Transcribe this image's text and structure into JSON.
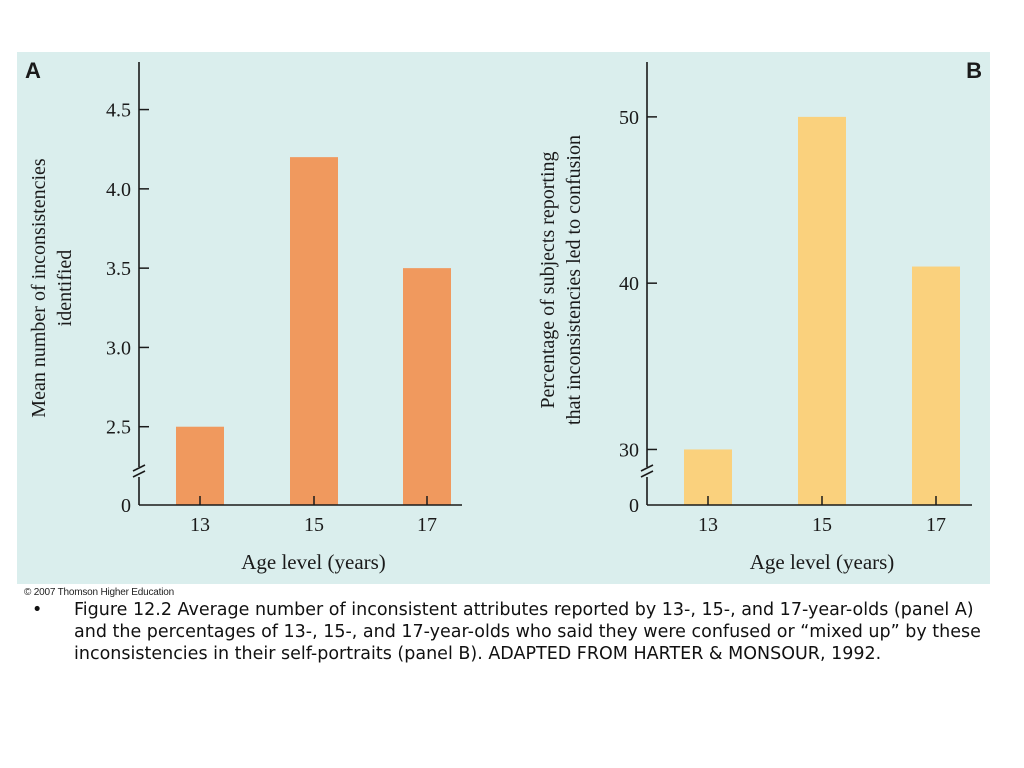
{
  "chart_data": [
    {
      "type": "bar",
      "panel_label": "A",
      "categories": [
        "13",
        "15",
        "17"
      ],
      "values": [
        2.5,
        4.2,
        3.5
      ],
      "ylabel_line1": "Mean number of inconsistencies",
      "ylabel_line2": "identified",
      "xlabel": "Age level (years)",
      "ylim": [
        2.0,
        4.8
      ],
      "yticks": [
        2.5,
        3.0,
        3.5,
        4.0,
        4.5
      ],
      "ytick_labels": [
        "2.5",
        "3.0",
        "3.5",
        "4.0",
        "4.5"
      ],
      "axis_break": true,
      "baseline_label": "0",
      "color": "#f0995e"
    },
    {
      "type": "bar",
      "panel_label": "B",
      "categories": [
        "13",
        "15",
        "17"
      ],
      "values": [
        30,
        50,
        41
      ],
      "ylabel_line1": "Percentage of subjects reporting",
      "ylabel_line2": "that inconsistencies led to confusion",
      "xlabel": "Age level (years)",
      "ylim": [
        26.6,
        53.3
      ],
      "yticks": [
        30,
        40,
        50
      ],
      "ytick_labels": [
        "30",
        "40",
        "50"
      ],
      "axis_break": true,
      "baseline_label": "0",
      "color": "#fad17d"
    }
  ],
  "copyright": "© 2007 Thomson Higher Education",
  "caption": "Figure 12.2 Average number of inconsistent attributes reported by 13-, 15-, and 17-year-olds (panel A) and the percentages of 13-, 15-, and 17-year-olds who said they were confused or “mixed up” by these inconsistencies in their self-portraits (panel B). ADAPTED FROM HARTER & MONSOUR, 1992."
}
